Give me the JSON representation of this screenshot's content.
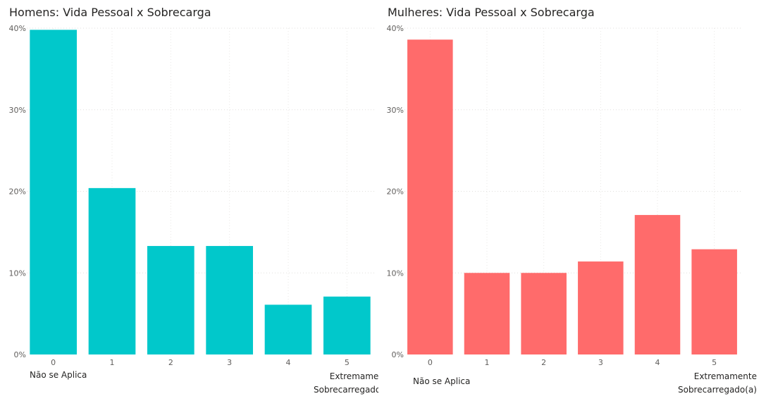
{
  "chart_data": [
    {
      "id": "men",
      "type": "bar",
      "title": "Homens: Vida Pessoal x Sobrecarga",
      "categories": [
        "0",
        "1",
        "2",
        "3",
        "4",
        "5"
      ],
      "values": [
        39.8,
        20.4,
        13.3,
        13.3,
        6.1,
        7.1
      ],
      "yticks": [
        "0%",
        "10%",
        "20%",
        "30%",
        "40%"
      ],
      "ylim": [
        0,
        40
      ],
      "grid": true,
      "color": "#01C8CB",
      "low_label": "Não se Aplica",
      "high_label": [
        "Extremamente",
        "Sobrecarregado(a)"
      ]
    },
    {
      "id": "women",
      "type": "bar",
      "title": "Mulheres: Vida Pessoal x Sobrecarga",
      "categories": [
        "0",
        "1",
        "2",
        "3",
        "4",
        "5"
      ],
      "values": [
        38.6,
        10.0,
        10.0,
        11.4,
        17.1,
        12.9
      ],
      "yticks": [
        "0%",
        "10%",
        "20%",
        "30%",
        "40%"
      ],
      "ylim": [
        0,
        40
      ],
      "grid": true,
      "color": "#FF6B6B",
      "low_label": "Não se Aplica",
      "high_label": [
        "Extremamente",
        "Sobrecarregado(a)"
      ]
    }
  ]
}
